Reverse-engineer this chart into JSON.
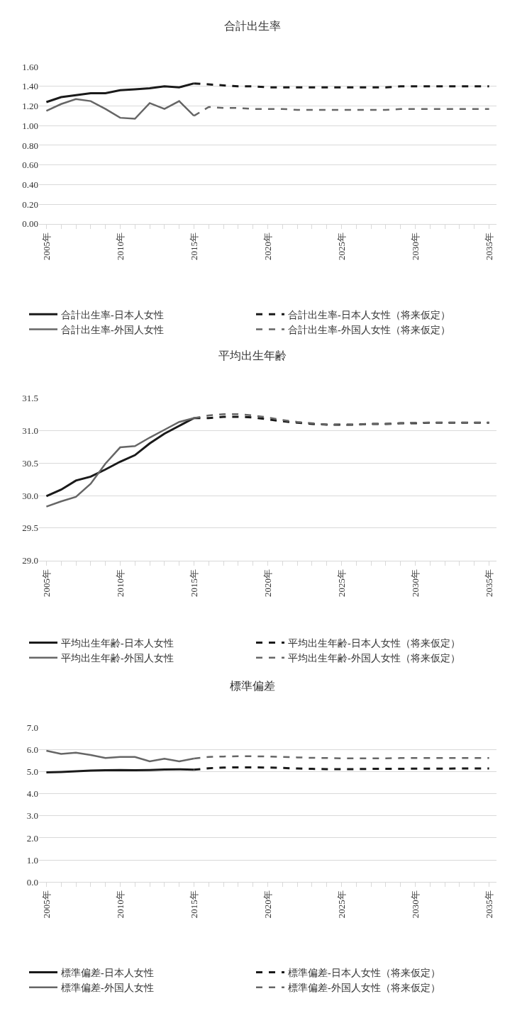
{
  "chart_data": [
    {
      "type": "line",
      "title": "合計出生率",
      "legend": "bottom",
      "grid": "y",
      "marker": "none",
      "categories": [
        "2005年",
        null,
        null,
        null,
        null,
        "2010年",
        null,
        null,
        null,
        null,
        "2015年",
        null,
        null,
        null,
        null,
        "2020年",
        null,
        null,
        null,
        null,
        "2025年",
        null,
        null,
        null,
        null,
        "2030年",
        null,
        null,
        null,
        null,
        "2035年"
      ],
      "ylim": [
        0,
        1.6
      ],
      "yticks": [
        {
          "value": 0,
          "label": "0.00"
        },
        {
          "value": 0.2,
          "label": "0.20"
        },
        {
          "value": 0.4,
          "label": "0.40"
        },
        {
          "value": 0.6,
          "label": "0.60"
        },
        {
          "value": 0.8,
          "label": "0.80"
        },
        {
          "value": 1.0,
          "label": "1.00"
        },
        {
          "value": 1.2,
          "label": "1.20"
        },
        {
          "value": 1.4,
          "label": "1.40"
        },
        {
          "value": 1.6,
          "label": "1.60"
        }
      ],
      "series": [
        {
          "name": "合計出生率-日本人女性",
          "color": "#1a1a1a",
          "line_style": "solid",
          "values": [
            1.24,
            1.29,
            1.31,
            1.33,
            1.33,
            1.36,
            1.37,
            1.38,
            1.4,
            1.39,
            1.43,
            null,
            null,
            null,
            null,
            null,
            null,
            null,
            null,
            null,
            null,
            null,
            null,
            null,
            null,
            null,
            null,
            null,
            null,
            null,
            null
          ]
        },
        {
          "name": "合計出生率-日本人女性（将来仮定）",
          "color": "#1a1a1a",
          "line_style": "dashed",
          "values": [
            null,
            null,
            null,
            null,
            null,
            null,
            null,
            null,
            null,
            null,
            1.43,
            1.42,
            1.41,
            1.4,
            1.4,
            1.39,
            1.39,
            1.39,
            1.39,
            1.39,
            1.39,
            1.39,
            1.39,
            1.39,
            1.4,
            1.4,
            1.4,
            1.4,
            1.4,
            1.4,
            1.4
          ]
        },
        {
          "name": "合計出生率-外国人女性",
          "color": "#666666",
          "line_style": "solid",
          "values": [
            1.15,
            1.22,
            1.27,
            1.25,
            1.17,
            1.08,
            1.07,
            1.23,
            1.17,
            1.25,
            1.1,
            null,
            null,
            null,
            null,
            null,
            null,
            null,
            null,
            null,
            null,
            null,
            null,
            null,
            null,
            null,
            null,
            null,
            null,
            null,
            null
          ]
        },
        {
          "name": "合計出生率-外国人女性（将来仮定）",
          "color": "#666666",
          "line_style": "dashed",
          "values": [
            null,
            null,
            null,
            null,
            null,
            null,
            null,
            null,
            null,
            null,
            1.1,
            1.19,
            1.18,
            1.18,
            1.17,
            1.17,
            1.17,
            1.16,
            1.16,
            1.16,
            1.16,
            1.16,
            1.16,
            1.16,
            1.17,
            1.17,
            1.17,
            1.17,
            1.17,
            1.17,
            1.17
          ]
        }
      ]
    },
    {
      "type": "line",
      "title": "平均出生年齢",
      "legend": "bottom",
      "grid": "y",
      "marker": "none",
      "categories": [
        "2005年",
        null,
        null,
        null,
        null,
        "2010年",
        null,
        null,
        null,
        null,
        "2015年",
        null,
        null,
        null,
        null,
        "2020年",
        null,
        null,
        null,
        null,
        "2025年",
        null,
        null,
        null,
        null,
        "2030年",
        null,
        null,
        null,
        null,
        "2035年"
      ],
      "ylim": [
        29.0,
        31.5
      ],
      "yticks": [
        {
          "value": 29.0,
          "label": "29.0"
        },
        {
          "value": 29.5,
          "label": "29.5"
        },
        {
          "value": 30.0,
          "label": "30.0"
        },
        {
          "value": 30.5,
          "label": "30.5"
        },
        {
          "value": 31.0,
          "label": "31.0"
        },
        {
          "value": 31.5,
          "label": "31.5"
        }
      ],
      "series": [
        {
          "name": "平均出生年齢-日本人女性",
          "color": "#1a1a1a",
          "line_style": "solid",
          "values": [
            29.99,
            30.09,
            30.23,
            30.29,
            30.4,
            30.52,
            30.62,
            30.8,
            30.95,
            31.07,
            31.19,
            null,
            null,
            null,
            null,
            null,
            null,
            null,
            null,
            null,
            null,
            null,
            null,
            null,
            null,
            null,
            null,
            null,
            null,
            null,
            null
          ]
        },
        {
          "name": "平均出生年齢-日本人女性（将来仮定）",
          "color": "#1a1a1a",
          "line_style": "dashed",
          "values": [
            null,
            null,
            null,
            null,
            null,
            null,
            null,
            null,
            null,
            null,
            31.19,
            31.19,
            31.21,
            31.21,
            31.2,
            31.17,
            31.14,
            31.12,
            31.1,
            31.09,
            31.09,
            31.09,
            31.1,
            31.1,
            31.11,
            31.11,
            31.12,
            31.12,
            31.12,
            31.12,
            31.12
          ]
        },
        {
          "name": "平均出生年齢-外国人女性",
          "color": "#666666",
          "line_style": "solid",
          "values": [
            29.83,
            29.91,
            29.98,
            30.18,
            30.49,
            30.74,
            30.76,
            30.89,
            31.01,
            31.13,
            31.19,
            null,
            null,
            null,
            null,
            null,
            null,
            null,
            null,
            null,
            null,
            null,
            null,
            null,
            null,
            null,
            null,
            null,
            null,
            null,
            null
          ]
        },
        {
          "name": "平均出生年齢-外国人女性（将来仮定）",
          "color": "#666666",
          "line_style": "dashed",
          "values": [
            null,
            null,
            null,
            null,
            null,
            null,
            null,
            null,
            null,
            null,
            31.19,
            31.23,
            31.25,
            31.25,
            31.23,
            31.2,
            31.16,
            31.13,
            31.11,
            31.09,
            31.08,
            31.09,
            31.1,
            31.1,
            31.11,
            31.12,
            31.12,
            31.12,
            31.12,
            31.12,
            31.12
          ]
        }
      ]
    },
    {
      "type": "line",
      "title": "標準偏差",
      "legend": "bottom",
      "grid": "y",
      "marker": "none",
      "categories": [
        "2005年",
        null,
        null,
        null,
        null,
        "2010年",
        null,
        null,
        null,
        null,
        "2015年",
        null,
        null,
        null,
        null,
        "2020年",
        null,
        null,
        null,
        null,
        "2025年",
        null,
        null,
        null,
        null,
        "2030年",
        null,
        null,
        null,
        null,
        "2035年"
      ],
      "ylim": [
        0,
        7.0
      ],
      "yticks": [
        {
          "value": 0,
          "label": "0.0"
        },
        {
          "value": 1,
          "label": "1.0"
        },
        {
          "value": 2,
          "label": "2.0"
        },
        {
          "value": 3,
          "label": "3.0"
        },
        {
          "value": 4,
          "label": "4.0"
        },
        {
          "value": 5,
          "label": "5.0"
        },
        {
          "value": 6,
          "label": "6.0"
        },
        {
          "value": 7,
          "label": "7.0"
        }
      ],
      "series": [
        {
          "name": "標準偏差-日本人女性",
          "color": "#1a1a1a",
          "line_style": "solid",
          "values": [
            4.97,
            4.99,
            5.02,
            5.05,
            5.07,
            5.08,
            5.07,
            5.08,
            5.1,
            5.11,
            5.09,
            null,
            null,
            null,
            null,
            null,
            null,
            null,
            null,
            null,
            null,
            null,
            null,
            null,
            null,
            null,
            null,
            null,
            null,
            null,
            null
          ]
        },
        {
          "name": "標準偏差-日本人女性（将来仮定）",
          "color": "#1a1a1a",
          "line_style": "dashed",
          "values": [
            null,
            null,
            null,
            null,
            null,
            null,
            null,
            null,
            null,
            null,
            5.09,
            5.16,
            5.19,
            5.2,
            5.2,
            5.19,
            5.17,
            5.15,
            5.13,
            5.12,
            5.12,
            5.12,
            5.13,
            5.13,
            5.13,
            5.14,
            5.14,
            5.14,
            5.15,
            5.15,
            5.15
          ]
        },
        {
          "name": "標準偏差-外国人女性",
          "color": "#666666",
          "line_style": "solid",
          "values": [
            5.95,
            5.81,
            5.86,
            5.76,
            5.62,
            5.67,
            5.67,
            5.47,
            5.59,
            5.47,
            5.6,
            null,
            null,
            null,
            null,
            null,
            null,
            null,
            null,
            null,
            null,
            null,
            null,
            null,
            null,
            null,
            null,
            null,
            null,
            null,
            null
          ]
        },
        {
          "name": "標準偏差-外国人女性（将来仮定）",
          "color": "#666666",
          "line_style": "dashed",
          "values": [
            null,
            null,
            null,
            null,
            null,
            null,
            null,
            null,
            null,
            null,
            5.6,
            5.67,
            5.69,
            5.7,
            5.7,
            5.69,
            5.67,
            5.65,
            5.63,
            5.62,
            5.61,
            5.61,
            5.61,
            5.61,
            5.62,
            5.62,
            5.62,
            5.62,
            5.62,
            5.62,
            5.62
          ]
        }
      ]
    }
  ]
}
